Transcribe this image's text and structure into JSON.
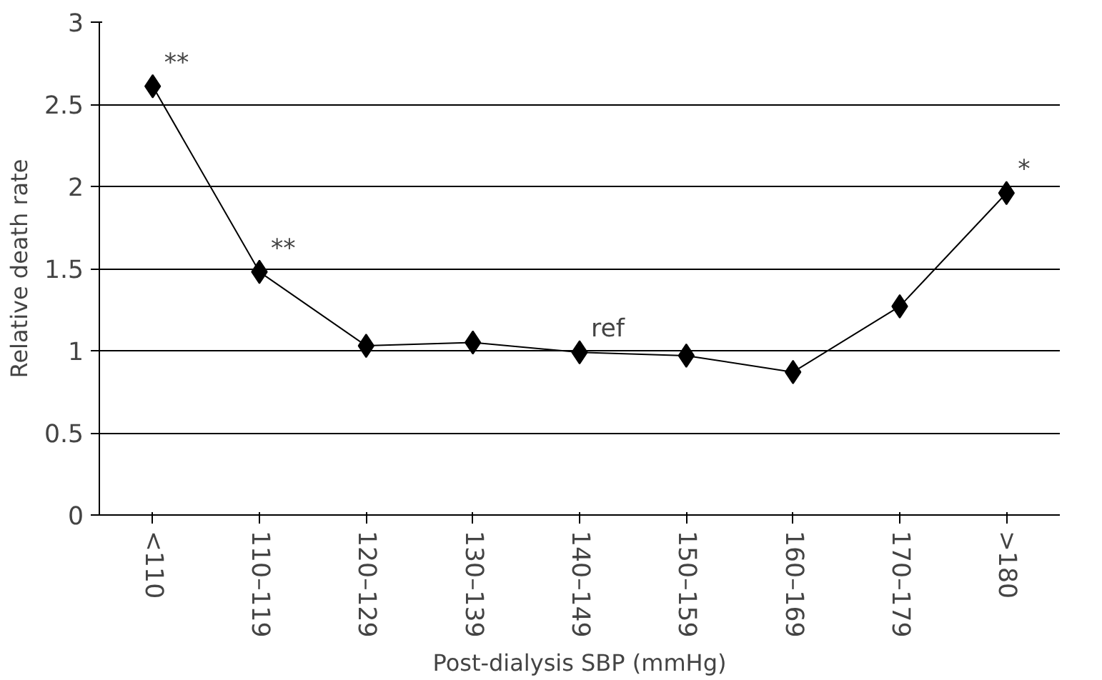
{
  "chart_data": {
    "type": "line",
    "xlabel": "Post-dialysis SBP (mmHg)",
    "ylabel": "Relative death rate",
    "categories": [
      "<110",
      "110–119",
      "120–129",
      "130–139",
      "140–149",
      "150–159",
      "160–169",
      "170–179",
      ">180"
    ],
    "series": [
      {
        "color": "#000000",
        "values": [
          2.61,
          1.48,
          1.03,
          1.05,
          0.99,
          0.97,
          0.87,
          1.27,
          1.96
        ]
      }
    ],
    "ylim": [
      0,
      3
    ],
    "yticks": [
      0,
      0.5,
      1,
      1.5,
      2,
      2.5,
      3
    ],
    "grid": "y",
    "marker": "diamond",
    "line_style": "solid",
    "annotations": [
      {
        "text": "**",
        "x": "<110",
        "y": 2.61
      },
      {
        "text": "**",
        "x": "110–119",
        "y": 1.48
      },
      {
        "text": "ref",
        "x": "140–149",
        "y": 0.99
      },
      {
        "text": "*",
        "x": ">180",
        "y": 1.96
      }
    ]
  }
}
